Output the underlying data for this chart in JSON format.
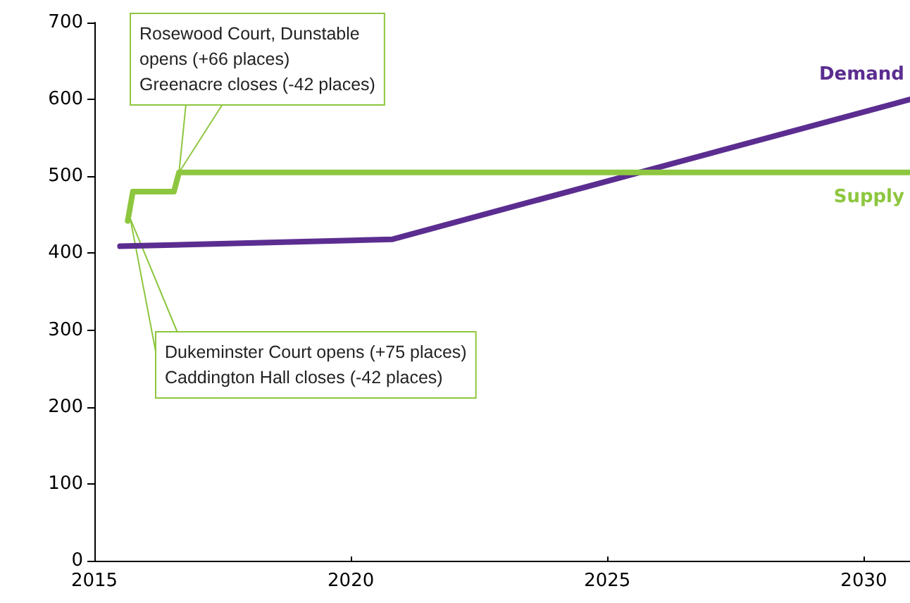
{
  "chart_data": {
    "type": "line",
    "xlim": [
      2015,
      2030.9
    ],
    "xticks": [
      2015,
      2020,
      2025,
      2030
    ],
    "ylim": [
      0,
      700
    ],
    "yticks": [
      0,
      100,
      200,
      300,
      400,
      500,
      600,
      700
    ],
    "grid": false,
    "legend": false,
    "marker": "none",
    "line_style": "solid",
    "series": [
      {
        "name": "Demand",
        "color": "#5b2d90",
        "x": [
          2015.5,
          2020.8,
          2030.9
        ],
        "values": [
          409,
          418,
          600
        ]
      },
      {
        "name": "Supply",
        "color": "#8dc63f",
        "x": [
          2015.65,
          2015.75,
          2016.55,
          2016.65,
          2030.9
        ],
        "values": [
          442,
          480,
          480,
          505,
          505
        ]
      }
    ],
    "annotations": [
      {
        "text": "Rosewood Court, Dunstable\nopens (+66 places)\nGreenacre closes (-42 places)",
        "x": 2016.65,
        "y": 505
      },
      {
        "text": "Dukeminster Court opens (+75 places)\nCaddington Hall closes (-42 places)",
        "x": 2015.7,
        "y": 445
      }
    ]
  }
}
